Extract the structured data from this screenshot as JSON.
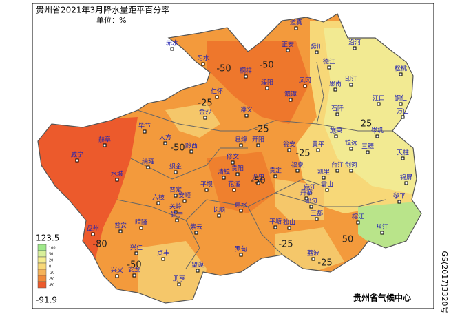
{
  "header": {
    "title": "贵州省2021年3月降水量距平百分率",
    "unit": "单位：%"
  },
  "legend": {
    "max": "123.5",
    "min": "-91.9",
    "levels": [
      "100",
      "50",
      "20",
      "0",
      "-20",
      "-50",
      "-80"
    ]
  },
  "stations": [
    "道真",
    "赤水",
    "习水",
    "正安",
    "务川",
    "沿河",
    "桐梓",
    "绥阳",
    "德江",
    "印江",
    "松桃",
    "仁怀",
    "湄潭",
    "凤冈",
    "思南",
    "江口",
    "铜仁",
    "遵义",
    "金沙",
    "石阡",
    "万山",
    "毕节",
    "大方",
    "黔西",
    "赫章",
    "威宁",
    "纳雍",
    "织金",
    "息烽",
    "开阳",
    "修文",
    "清镇",
    "贵阳",
    "瓮安",
    "黄平",
    "施秉",
    "镇远",
    "岑巩",
    "三穗",
    "天柱",
    "福泉",
    "凯里",
    "台江",
    "剑河",
    "锦屏",
    "水城",
    "六枝",
    "普定",
    "安顺",
    "平坝",
    "花溪",
    "龙里",
    "贵定",
    "麻江",
    "雷山",
    "黎平",
    "盘州",
    "晴隆",
    "关岭",
    "镇宁",
    "普安",
    "紫云",
    "长顺",
    "惠水",
    "都匀",
    "丹寨",
    "三都",
    "榕江",
    "从江",
    "平塘",
    "独山",
    "兴仁",
    "贞丰",
    "望谟",
    "罗甸",
    "荔波",
    "兴义",
    "安龙",
    "册亨"
  ],
  "contour_labels": [
    "-50",
    "-25",
    "-50",
    "-50",
    "-50",
    "-25",
    "-25",
    "-80",
    "-50",
    "25",
    "50",
    "-25",
    "-25"
  ],
  "credit": "贵州省气候中心",
  "approval": "GS(2017)3320号"
}
